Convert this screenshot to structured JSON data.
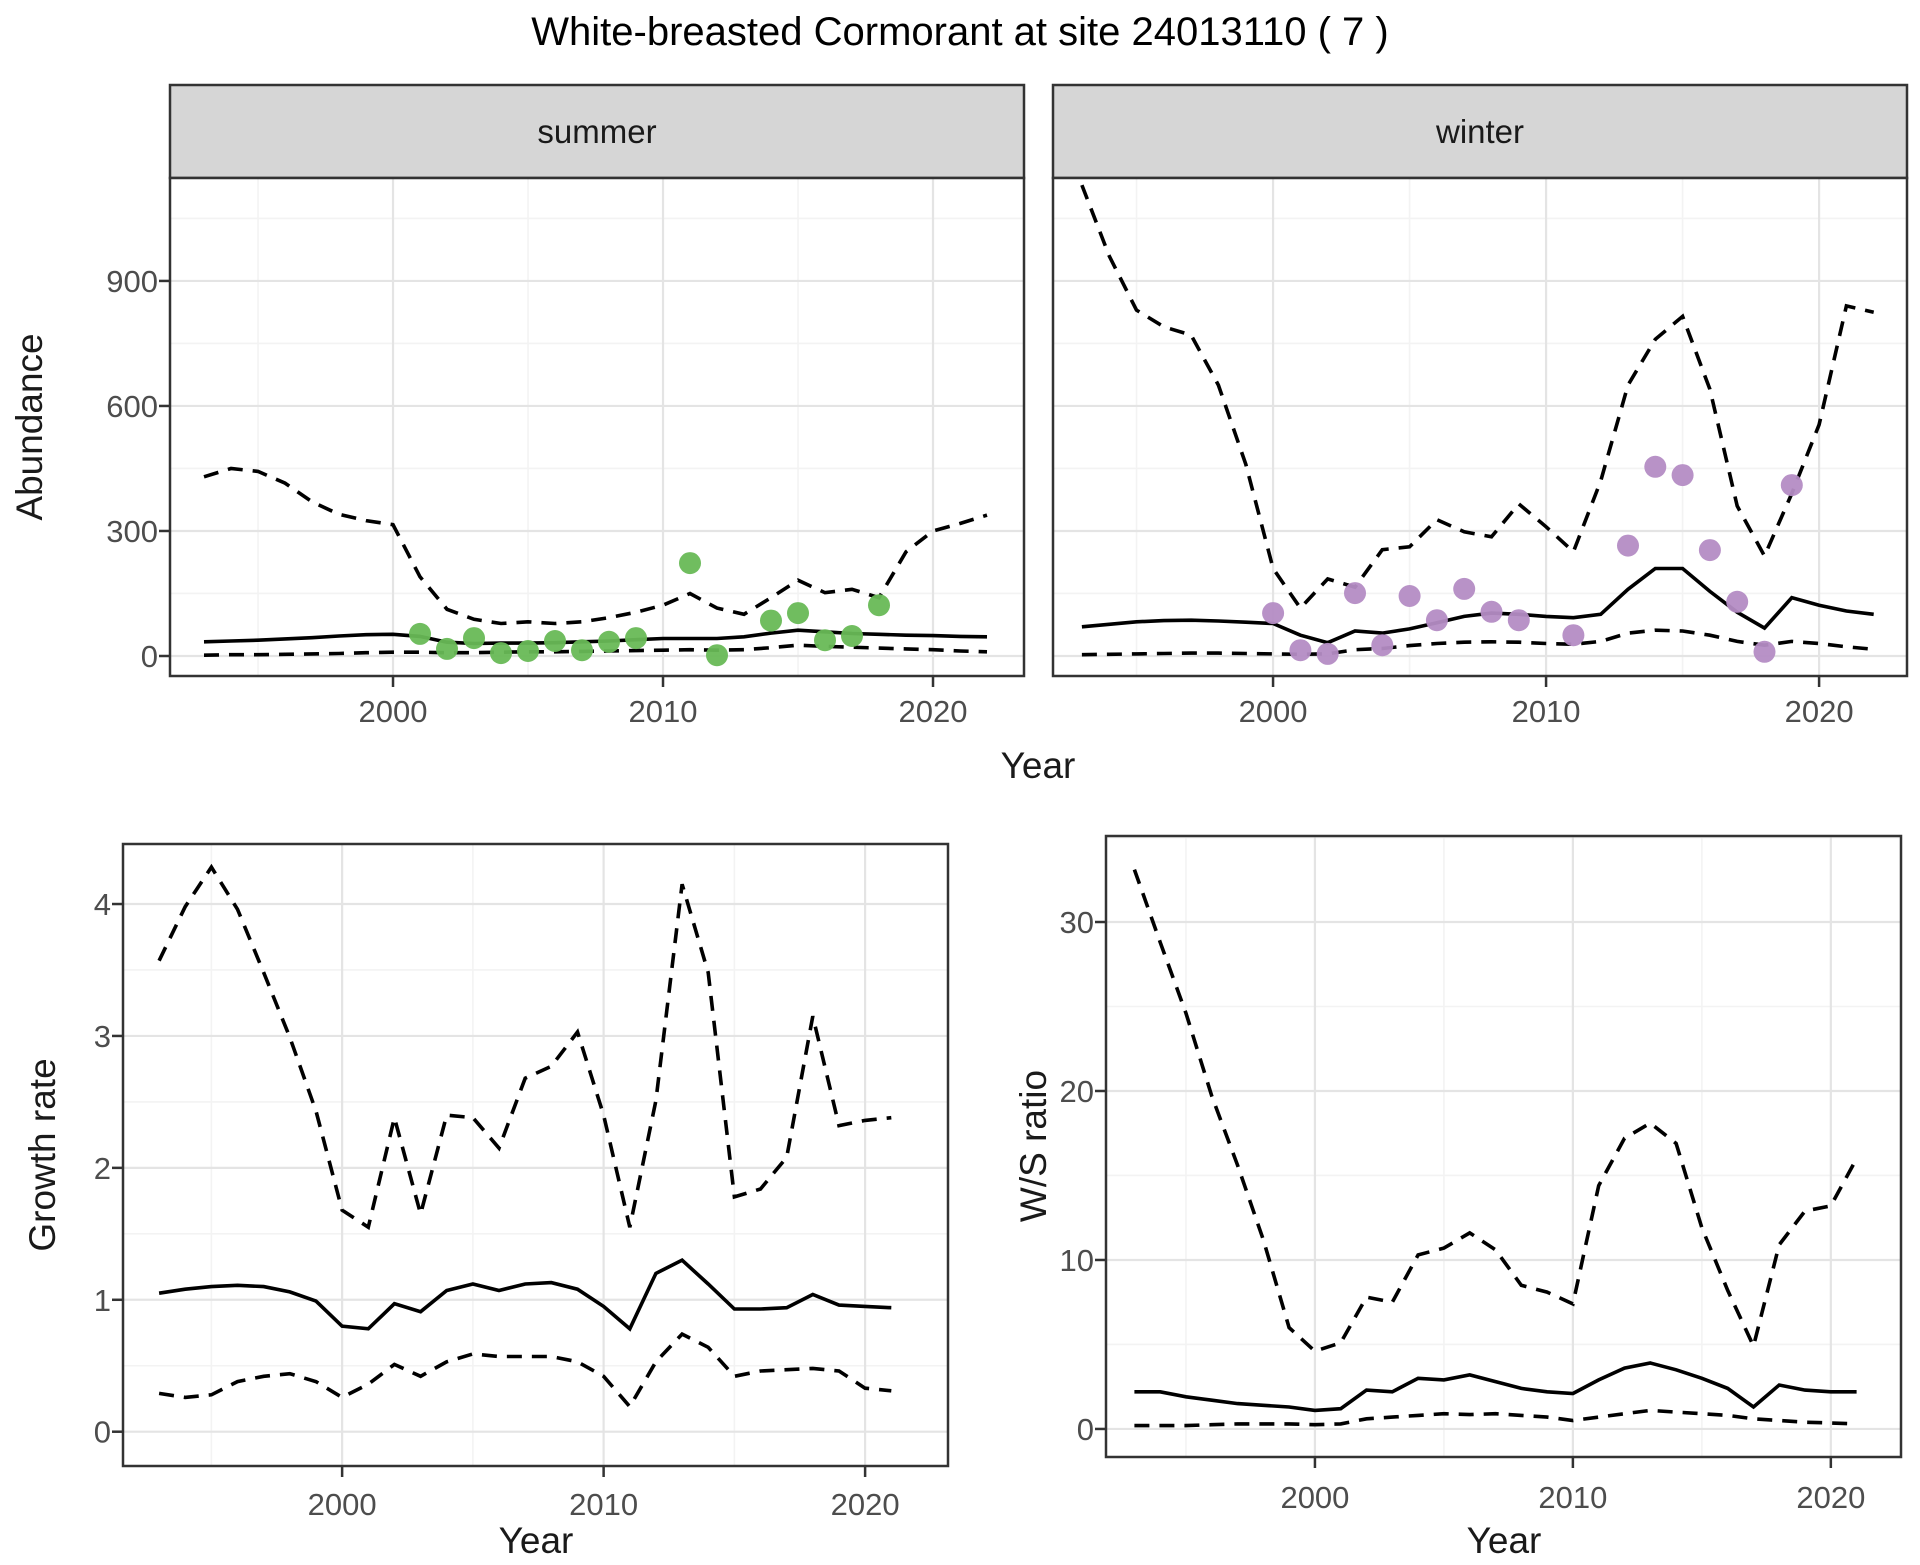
{
  "title": "White-breasted Cormorant at site 24013110 ( 7 )",
  "axes": {
    "abundance_label": "Abundance",
    "growth_label": "Growth rate",
    "ws_label": "W/S ratio",
    "top_xlabel": "Year",
    "bottom_left_xlabel": "Year",
    "bottom_right_xlabel": "Year"
  },
  "colors": {
    "summer_points": "#68b956",
    "winter_points": "#b48cc4",
    "line": "#000000",
    "grid_major": "#e4e4e4",
    "grid_minor": "#f3f3f3",
    "strip_bg": "#d6d6d6",
    "panel_border": "#333333",
    "panel_bg": "#ffffff",
    "tick_mark": "#333333",
    "tick_label": "#4d4d4d"
  },
  "chart_data": [
    {
      "id": "abundance_summer",
      "type": "line",
      "facet_label": "summer",
      "ylabel": "Abundance",
      "xlabel": "Year",
      "grid": true,
      "legend_position": "none",
      "years": [
        1993,
        1994,
        1995,
        1996,
        1997,
        1998,
        1999,
        2000,
        2001,
        2002,
        2003,
        2004,
        2005,
        2006,
        2007,
        2008,
        2009,
        2010,
        2011,
        2012,
        2013,
        2014,
        2015,
        2016,
        2017,
        2018,
        2019,
        2020,
        2021,
        2022
      ],
      "series": [
        {
          "name": "upper_ci",
          "style": "dashed",
          "values": [
            430,
            450,
            443,
            415,
            370,
            340,
            325,
            315,
            190,
            112,
            88,
            78,
            82,
            78,
            82,
            92,
            105,
            122,
            150,
            115,
            100,
            140,
            182,
            152,
            160,
            140,
            250,
            300,
            318,
            338
          ]
        },
        {
          "name": "median",
          "style": "solid",
          "values": [
            34,
            36,
            38,
            41,
            44,
            48,
            51,
            52,
            47,
            33,
            30,
            31,
            31,
            32,
            34,
            36,
            39,
            42,
            42,
            42,
            46,
            55,
            62,
            58,
            54,
            52,
            50,
            49,
            47,
            46
          ]
        },
        {
          "name": "lower_ci",
          "style": "dashed",
          "values": [
            2,
            3,
            3,
            4,
            5,
            6,
            8,
            9,
            9,
            8,
            8,
            9,
            10,
            10,
            11,
            12,
            13,
            14,
            15,
            14,
            15,
            20,
            26,
            23,
            21,
            19,
            17,
            15,
            12,
            10
          ]
        }
      ],
      "points": {
        "name": "observed_counts_summer",
        "color_key": "summer_points",
        "data": [
          [
            2001,
            53
          ],
          [
            2002,
            17
          ],
          [
            2003,
            43
          ],
          [
            2004,
            7
          ],
          [
            2005,
            12
          ],
          [
            2006,
            36
          ],
          [
            2007,
            14
          ],
          [
            2008,
            34
          ],
          [
            2009,
            43
          ],
          [
            2011,
            223
          ],
          [
            2012,
            2
          ],
          [
            2014,
            85
          ],
          [
            2015,
            103
          ],
          [
            2016,
            38
          ],
          [
            2017,
            48
          ],
          [
            2018,
            122
          ]
        ]
      },
      "xlim": [
        1991.74,
        2023.37
      ],
      "ylim": [
        -48,
        1147
      ],
      "xticks": [
        2000,
        2010,
        2020
      ],
      "xtick_labels": [
        "2000",
        "2010",
        "2020"
      ],
      "xticks_minor": [
        1995,
        2005,
        2015
      ],
      "yticks": [
        0,
        300,
        600,
        900
      ],
      "ytick_labels": [
        "0",
        "300",
        "600",
        "900"
      ],
      "yticks_minor": [
        150,
        450,
        750,
        1050
      ]
    },
    {
      "id": "abundance_winter",
      "type": "line",
      "facet_label": "winter",
      "ylabel": "Abundance",
      "xlabel": "Year",
      "grid": true,
      "legend_position": "none",
      "years": [
        1993,
        1994,
        1995,
        1996,
        1997,
        1998,
        1999,
        2000,
        2001,
        2002,
        2003,
        2004,
        2005,
        2006,
        2007,
        2008,
        2009,
        2010,
        2011,
        2012,
        2013,
        2014,
        2015,
        2016,
        2017,
        2018,
        2019,
        2020,
        2021,
        2022
      ],
      "series": [
        {
          "name": "upper_ci",
          "style": "dashed",
          "values": [
            1130,
            960,
            830,
            790,
            770,
            650,
            460,
            210,
            115,
            185,
            165,
            255,
            262,
            327,
            298,
            286,
            365,
            310,
            250,
            420,
            650,
            760,
            815,
            640,
            360,
            240,
            390,
            555,
            840,
            825
          ]
        },
        {
          "name": "median",
          "style": "solid",
          "values": [
            70,
            76,
            82,
            85,
            86,
            84,
            81,
            78,
            50,
            32,
            60,
            55,
            65,
            80,
            95,
            103,
            100,
            95,
            92,
            100,
            160,
            210,
            210,
            155,
            105,
            67,
            140,
            122,
            108,
            100
          ]
        },
        {
          "name": "lower_ci",
          "style": "dashed",
          "values": [
            3,
            4,
            5,
            6,
            7,
            7,
            6,
            5,
            4,
            5,
            15,
            18,
            25,
            30,
            33,
            34,
            33,
            30,
            28,
            35,
            55,
            62,
            60,
            50,
            35,
            26,
            35,
            30,
            22,
            16
          ]
        }
      ],
      "points": {
        "name": "observed_counts_winter",
        "color_key": "winter_points",
        "data": [
          [
            2000,
            103
          ],
          [
            2001,
            14
          ],
          [
            2002,
            5
          ],
          [
            2003,
            151
          ],
          [
            2004,
            26
          ],
          [
            2005,
            144
          ],
          [
            2006,
            86
          ],
          [
            2007,
            161
          ],
          [
            2008,
            106
          ],
          [
            2009,
            86
          ],
          [
            2011,
            50
          ],
          [
            2013,
            265
          ],
          [
            2014,
            454
          ],
          [
            2015,
            434
          ],
          [
            2016,
            254
          ],
          [
            2017,
            130
          ],
          [
            2018,
            10
          ],
          [
            2019,
            410
          ]
        ]
      },
      "xlim": [
        1991.94,
        2023.22
      ],
      "ylim": [
        -48,
        1147
      ],
      "xticks": [
        2000,
        2010,
        2020
      ],
      "xtick_labels": [
        "2000",
        "2010",
        "2020"
      ],
      "xticks_minor": [
        1995,
        2005,
        2015
      ],
      "yticks": [
        0,
        300,
        600,
        900
      ],
      "ytick_labels": [
        "0",
        "300",
        "600",
        "900"
      ],
      "yticks_minor": [
        150,
        450,
        750,
        1050
      ]
    },
    {
      "id": "growth_rate",
      "type": "line",
      "facet_label": "",
      "ylabel": "Growth rate",
      "xlabel": "Year",
      "grid": true,
      "legend_position": "none",
      "years": [
        1993,
        1994,
        1995,
        1996,
        1997,
        1998,
        1999,
        2000,
        2001,
        2002,
        2003,
        2004,
        2005,
        2006,
        2007,
        2008,
        2009,
        2010,
        2011,
        2012,
        2013,
        2014,
        2015,
        2016,
        2017,
        2018,
        2019,
        2020,
        2021
      ],
      "series": [
        {
          "name": "upper_ci",
          "style": "dashed",
          "values": [
            3.57,
            3.98,
            4.28,
            3.96,
            3.48,
            2.99,
            2.43,
            1.68,
            1.55,
            2.38,
            1.65,
            2.4,
            2.38,
            2.15,
            2.68,
            2.77,
            3.03,
            2.4,
            1.55,
            2.51,
            4.15,
            3.48,
            1.78,
            1.84,
            2.08,
            3.15,
            2.32,
            2.36,
            2.38
          ]
        },
        {
          "name": "median",
          "style": "solid",
          "values": [
            1.05,
            1.08,
            1.1,
            1.11,
            1.1,
            1.06,
            0.99,
            0.8,
            0.78,
            0.97,
            0.91,
            1.07,
            1.12,
            1.07,
            1.12,
            1.13,
            1.08,
            0.95,
            0.78,
            1.2,
            1.3,
            1.12,
            0.93,
            0.93,
            0.94,
            1.04,
            0.96,
            0.95,
            0.94
          ]
        },
        {
          "name": "lower_ci",
          "style": "dashed",
          "values": [
            0.29,
            0.26,
            0.28,
            0.38,
            0.42,
            0.44,
            0.38,
            0.26,
            0.36,
            0.51,
            0.42,
            0.53,
            0.59,
            0.57,
            0.57,
            0.57,
            0.53,
            0.42,
            0.19,
            0.53,
            0.74,
            0.64,
            0.42,
            0.46,
            0.47,
            0.48,
            0.46,
            0.33,
            0.31
          ]
        }
      ],
      "points": null,
      "xlim": [
        1991.62,
        2023.17
      ],
      "ylim": [
        -0.26,
        4.455
      ],
      "xticks": [
        2000,
        2010,
        2020
      ],
      "xtick_labels": [
        "2000",
        "2010",
        "2020"
      ],
      "xticks_minor": [
        1995,
        2005,
        2015
      ],
      "yticks": [
        0,
        1,
        2,
        3,
        4
      ],
      "ytick_labels": [
        "0",
        "1",
        "2",
        "3",
        "4"
      ],
      "yticks_minor": [
        0.5,
        1.5,
        2.5,
        3.5
      ]
    },
    {
      "id": "ws_ratio",
      "type": "line",
      "facet_label": "",
      "ylabel": "W/S ratio",
      "xlabel": "Year",
      "grid": true,
      "legend_position": "none",
      "years": [
        1993,
        1994,
        1995,
        1996,
        1997,
        1998,
        1999,
        2000,
        2001,
        2002,
        2003,
        2004,
        2005,
        2006,
        2007,
        2008,
        2009,
        2010,
        2011,
        2012,
        2013,
        2014,
        2015,
        2016,
        2017,
        2018,
        2019,
        2020,
        2021
      ],
      "series": [
        {
          "name": "upper_ci",
          "style": "dashed",
          "values": [
            33.1,
            28.8,
            24.6,
            19.7,
            15.6,
            11.2,
            6.0,
            4.6,
            5.1,
            7.8,
            7.5,
            10.3,
            10.7,
            11.6,
            10.6,
            8.5,
            8.1,
            7.4,
            14.4,
            17.2,
            18.1,
            16.9,
            11.9,
            8.2,
            4.9,
            10.9,
            12.9,
            13.2,
            16.0
          ]
        },
        {
          "name": "median",
          "style": "solid",
          "values": [
            2.2,
            2.2,
            1.9,
            1.7,
            1.5,
            1.4,
            1.3,
            1.1,
            1.2,
            2.3,
            2.2,
            3.0,
            2.9,
            3.2,
            2.8,
            2.4,
            2.2,
            2.1,
            2.9,
            3.6,
            3.9,
            3.5,
            3.0,
            2.4,
            1.3,
            2.6,
            2.3,
            2.2,
            2.2
          ]
        },
        {
          "name": "lower_ci",
          "style": "dashed",
          "values": [
            0.2,
            0.2,
            0.2,
            0.25,
            0.3,
            0.3,
            0.3,
            0.25,
            0.3,
            0.6,
            0.7,
            0.8,
            0.9,
            0.85,
            0.9,
            0.8,
            0.7,
            0.5,
            0.7,
            0.9,
            1.1,
            1.0,
            0.9,
            0.8,
            0.6,
            0.5,
            0.4,
            0.35,
            0.3
          ]
        }
      ],
      "points": null,
      "xlim": [
        1991.9,
        2022.72
      ],
      "ylim": [
        -1.66,
        35.09
      ],
      "xticks": [
        2000,
        2010,
        2020
      ],
      "xtick_labels": [
        "2000",
        "2010",
        "2020"
      ],
      "xticks_minor": [
        1995,
        2005,
        2015
      ],
      "yticks": [
        0,
        10,
        20,
        30
      ],
      "ytick_labels": [
        "0",
        "10",
        "20",
        "30"
      ],
      "yticks_minor": [
        5,
        15,
        25,
        35
      ]
    }
  ]
}
